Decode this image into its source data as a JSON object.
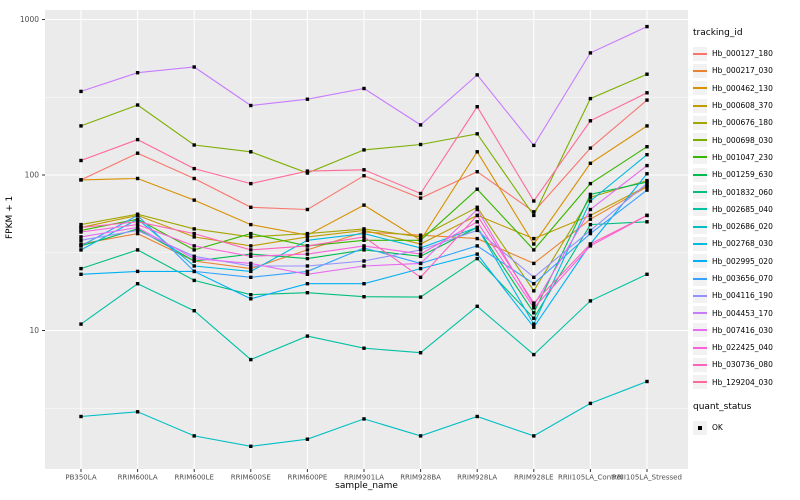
{
  "chart_data": {
    "type": "line",
    "xlabel": "sample_name",
    "ylabel": "FPKM + 1",
    "y_scale": "log10",
    "ylim": [
      1.3,
      1100
    ],
    "grid": "on",
    "legend_position": "right",
    "panel_bg": "#EBEBEB",
    "grid_color": "#FFFFFF",
    "point_color": "#000000",
    "tick_label_color": "#4D4D4D",
    "y_tick_labels": [
      "1000",
      "100",
      "10"
    ],
    "y_tick_values": [
      1000,
      100,
      10
    ],
    "y_minor_values": [
      316.23,
      31.62,
      3.162
    ],
    "categories": [
      "PB350LA",
      "RRIM600LA",
      "RRIM600LE",
      "RRIM600SE",
      "RRIM600PE",
      "RRIM901LA",
      "RRIM928BA",
      "RRIM928LA",
      "RRIM928LE",
      "RRII105LA_Control",
      "RRII105LA_Stressed"
    ],
    "series": [
      {
        "name": "Hb_000127_180",
        "color": "#F8766D",
        "values": [
          93,
          138,
          95,
          62,
          60,
          99,
          71,
          105,
          58,
          149,
          303
        ]
      },
      {
        "name": "Hb_000217_030",
        "color": "#EA8331",
        "values": [
          36,
          42,
          28,
          25,
          33,
          43,
          41,
          39,
          27,
          52,
          84
        ]
      },
      {
        "name": "Hb_000462_130",
        "color": "#D89000",
        "values": [
          93,
          95,
          69,
          48,
          41,
          64,
          38,
          141,
          36,
          119,
          207
        ]
      },
      {
        "name": "Hb_000608_370",
        "color": "#C09B00",
        "values": [
          46,
          55,
          40,
          35,
          40,
          44,
          36,
          55,
          39,
          55,
          85
        ]
      },
      {
        "name": "Hb_000676_180",
        "color": "#A3A500",
        "values": [
          48,
          56,
          45,
          40,
          42,
          45,
          40,
          62,
          18,
          72,
          92
        ]
      },
      {
        "name": "Hb_000698_030",
        "color": "#7CAE00",
        "values": [
          207,
          282,
          156,
          141,
          103,
          145,
          157,
          184,
          55,
          310,
          445
        ]
      },
      {
        "name": "Hb_001047_230",
        "color": "#39B600",
        "values": [
          44,
          52,
          33,
          42,
          35,
          38,
          38,
          81,
          33,
          88,
          152
        ]
      },
      {
        "name": "Hb_001259_630",
        "color": "#00BB4E",
        "values": [
          35,
          45,
          28,
          31,
          29,
          33,
          30,
          46,
          13,
          75,
          90
        ]
      },
      {
        "name": "Hb_001832_060",
        "color": "#00BF7D",
        "values": [
          25,
          33,
          21,
          17,
          17.5,
          16.5,
          16.4,
          29,
          12,
          48,
          50
        ]
      },
      {
        "name": "Hb_002685_040",
        "color": "#00C1A3",
        "values": [
          11,
          20,
          13.4,
          6.5,
          9.2,
          7.7,
          7.2,
          14.3,
          7,
          15.5,
          23
        ]
      },
      {
        "name": "Hb_002686_020",
        "color": "#00BFC4",
        "values": [
          2.8,
          3,
          2.1,
          1.8,
          2,
          2.7,
          2.1,
          2.8,
          2.1,
          3.4,
          4.7
        ]
      },
      {
        "name": "Hb_002768_030",
        "color": "#00BAE0",
        "values": [
          33,
          52,
          26,
          24,
          38,
          42,
          34,
          46,
          11,
          68,
          135
        ]
      },
      {
        "name": "Hb_002995_020",
        "color": "#00B0F6",
        "values": [
          23,
          24,
          24,
          16,
          20,
          20,
          25,
          31,
          10.5,
          36,
          102
        ]
      },
      {
        "name": "Hb_003656_070",
        "color": "#35A2FF",
        "values": [
          35,
          55,
          24,
          22,
          24,
          34,
          27,
          35,
          20,
          42,
          80
        ]
      },
      {
        "name": "Hb_004116_190",
        "color": "#9590FF",
        "values": [
          38,
          44,
          30,
          26,
          26,
          28,
          33,
          44,
          22,
          44,
          88
        ]
      },
      {
        "name": "Hb_004453_170",
        "color": "#C77CFF",
        "values": [
          345,
          455,
          495,
          280,
          307,
          360,
          210,
          440,
          155,
          610,
          900
        ]
      },
      {
        "name": "Hb_007416_030",
        "color": "#E76BF3",
        "values": [
          40,
          46,
          29,
          27,
          23,
          26,
          27,
          60,
          14.5,
          60,
          115
        ]
      },
      {
        "name": "Hb_022425_040",
        "color": "#FA62DB",
        "values": [
          43,
          48,
          35,
          30,
          31,
          35,
          31,
          50,
          14,
          35,
          55
        ]
      },
      {
        "name": "Hb_030736_080",
        "color": "#FF62BC",
        "values": [
          46,
          50,
          42,
          33,
          35,
          40,
          22,
          55,
          15,
          36,
          55
        ]
      },
      {
        "name": "Hb_129204_030",
        "color": "#FF6A98",
        "values": [
          124,
          169,
          110,
          88,
          106,
          108,
          76,
          275,
          68,
          223,
          338
        ]
      }
    ],
    "legend": {
      "tracking_title": "tracking_id",
      "quant_title": "quant_status",
      "quant_value": "OK"
    }
  }
}
